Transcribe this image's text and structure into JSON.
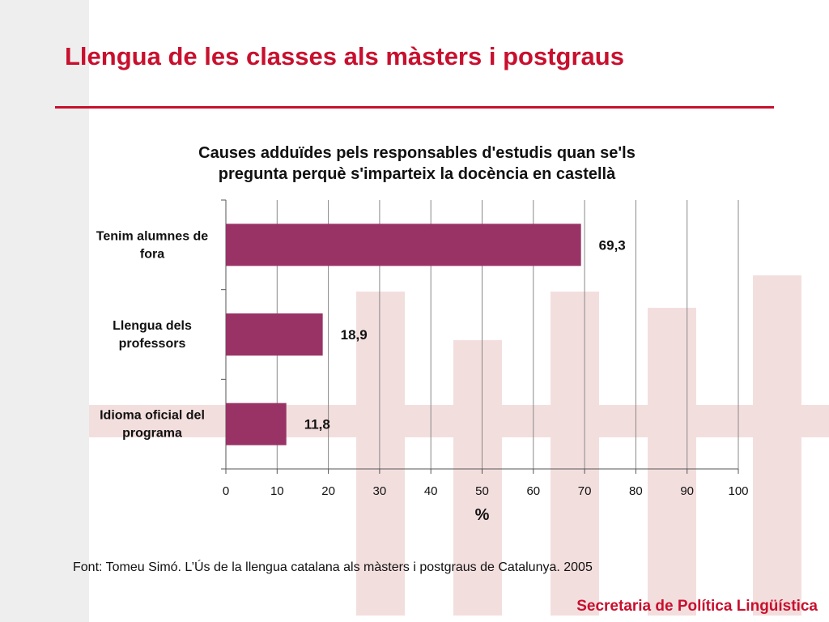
{
  "slide": {
    "title": "Llengua de les classes als màsters i postgraus",
    "source": "Font: Tomeu Simó. L’Ús de la llengua catalana als màsters i postgraus de Catalunya. 2005",
    "footer": "Secretaria de Política Lingüística"
  },
  "colors": {
    "accent": "#c8102e",
    "bar": "#993366",
    "watermark": "#f3dede"
  },
  "chart_data": {
    "type": "bar",
    "orientation": "horizontal",
    "title_lines": [
      "Causes adduïdes pels responsables d'estudis quan se'ls",
      "pregunta perquè s'imparteix la docència en castellà"
    ],
    "categories": [
      [
        "Tenim alumnes de",
        "fora"
      ],
      [
        "Llengua dels",
        "professors"
      ],
      [
        "Idioma oficial del",
        "programa"
      ]
    ],
    "values": [
      69.3,
      18.9,
      11.8
    ],
    "value_labels": [
      "69,3",
      "18,9",
      "11,8"
    ],
    "xlabel": "%",
    "xlim": [
      0,
      100
    ],
    "xticks": [
      0,
      10,
      20,
      30,
      40,
      50,
      60,
      70,
      80,
      90,
      100
    ],
    "grid": true,
    "legend": "none"
  }
}
